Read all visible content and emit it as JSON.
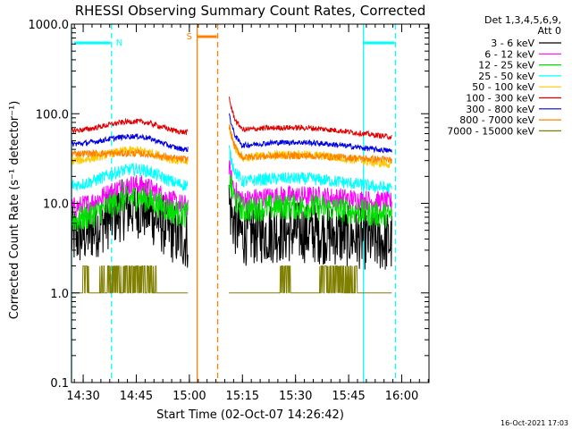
{
  "chart_data": {
    "type": "line",
    "title": "RHESSI Observing Summary Count Rates, Corrected",
    "ylabel": "Corrected Count Rate (s⁻¹ detector⁻¹)",
    "xlabel": "Start Time (02-Oct-07 14:26:42)",
    "y_scale": "log",
    "ylim": [
      0.1,
      1000
    ],
    "x_unit": "minutes after 14:26:42",
    "xlim": [
      0,
      101
    ],
    "grid": false,
    "legend": {
      "placement": "right",
      "header": [
        "Det 1,3,4,5,6,9,",
        "Att 0"
      ]
    },
    "x_ticks": [
      {
        "label": "14:30",
        "t": 3.3
      },
      {
        "label": "14:45",
        "t": 18.3
      },
      {
        "label": "15:00",
        "t": 33.3
      },
      {
        "label": "15:15",
        "t": 48.3
      },
      {
        "label": "15:30",
        "t": 63.3
      },
      {
        "label": "15:45",
        "t": 78.3
      },
      {
        "label": "16:00",
        "t": 93.3
      }
    ],
    "y_ticks": [
      {
        "label": "0.1",
        "v": 0.1
      },
      {
        "label": "1.0",
        "v": 1
      },
      {
        "label": "10.0",
        "v": 10
      },
      {
        "label": "100.0",
        "v": 100
      },
      {
        "label": "1000.0",
        "v": 1000
      }
    ],
    "series": [
      {
        "name": "3 - 6 keV",
        "color": "#000000",
        "base": [
          4.2,
          9.0,
          4.0,
          4.8,
          3.5
        ],
        "noise": 0.35
      },
      {
        "name": "6 - 12 keV",
        "color": "#ff00ff",
        "base": [
          9.0,
          16.0,
          9.5,
          12.0,
          10.0
        ],
        "noise": 0.12
      },
      {
        "name": "12 - 25 keV",
        "color": "#00e000",
        "base": [
          6.5,
          11.5,
          7.5,
          9.2,
          7.0
        ],
        "noise": 0.15
      },
      {
        "name": "25 - 50 keV",
        "color": "#00ffff",
        "base": [
          16.0,
          24.0,
          16.0,
          19.0,
          14.0
        ],
        "noise": 0.07
      },
      {
        "name": "50 - 100 keV",
        "color": "#ffc800",
        "base": [
          30.0,
          39.0,
          29.0,
          35.0,
          26.0
        ],
        "noise": 0.05
      },
      {
        "name": "100 - 300 keV",
        "color": "#e00000",
        "base": [
          65.0,
          82.0,
          62.0,
          70.0,
          53.0
        ],
        "noise": 0.03
      },
      {
        "name": "300 - 800 keV",
        "color": "#0000e0",
        "base": [
          46.0,
          56.0,
          40.0,
          48.0,
          37.0
        ],
        "noise": 0.03
      },
      {
        "name": "800 - 7000 keV",
        "color": "#ff8000",
        "base": [
          36.0,
          36.0,
          31.0,
          34.0,
          30.0
        ],
        "noise": 0.04
      },
      {
        "name": "7000 - 15000 keV",
        "color": "#7f7f00",
        "base": [
          1.0,
          1.0,
          1.0,
          1.0,
          1.0
        ],
        "noise": 0,
        "step": [
          1.0,
          2.0
        ]
      }
    ],
    "segments": [
      {
        "start": 0,
        "end": 33
      },
      {
        "start": 44.5,
        "end": 90.5
      }
    ],
    "flag_lines": [
      {
        "label": "N",
        "color": "#00ffff",
        "start": 0,
        "end": 11.3
      },
      {
        "label": "",
        "color": "#00ffff",
        "start": 82.5,
        "end": 91.5
      },
      {
        "label": "S",
        "color": "#ff8000",
        "start": 35.5,
        "end": 41.3
      }
    ],
    "markers": [
      {
        "color": "#00ffff",
        "t": 0,
        "style": "solid"
      },
      {
        "color": "#00ffff",
        "t": 11.3,
        "style": "dashed"
      },
      {
        "color": "#00ffff",
        "t": 82.5,
        "style": "solid"
      },
      {
        "color": "#00ffff",
        "t": 91.5,
        "style": "dashed"
      },
      {
        "color": "#ff8000",
        "t": 35.5,
        "style": "solid"
      },
      {
        "color": "#ff8000",
        "t": 41.3,
        "style": "dashed"
      }
    ]
  },
  "footer": {
    "timestamp": "16-Oct-2021 17:03"
  }
}
